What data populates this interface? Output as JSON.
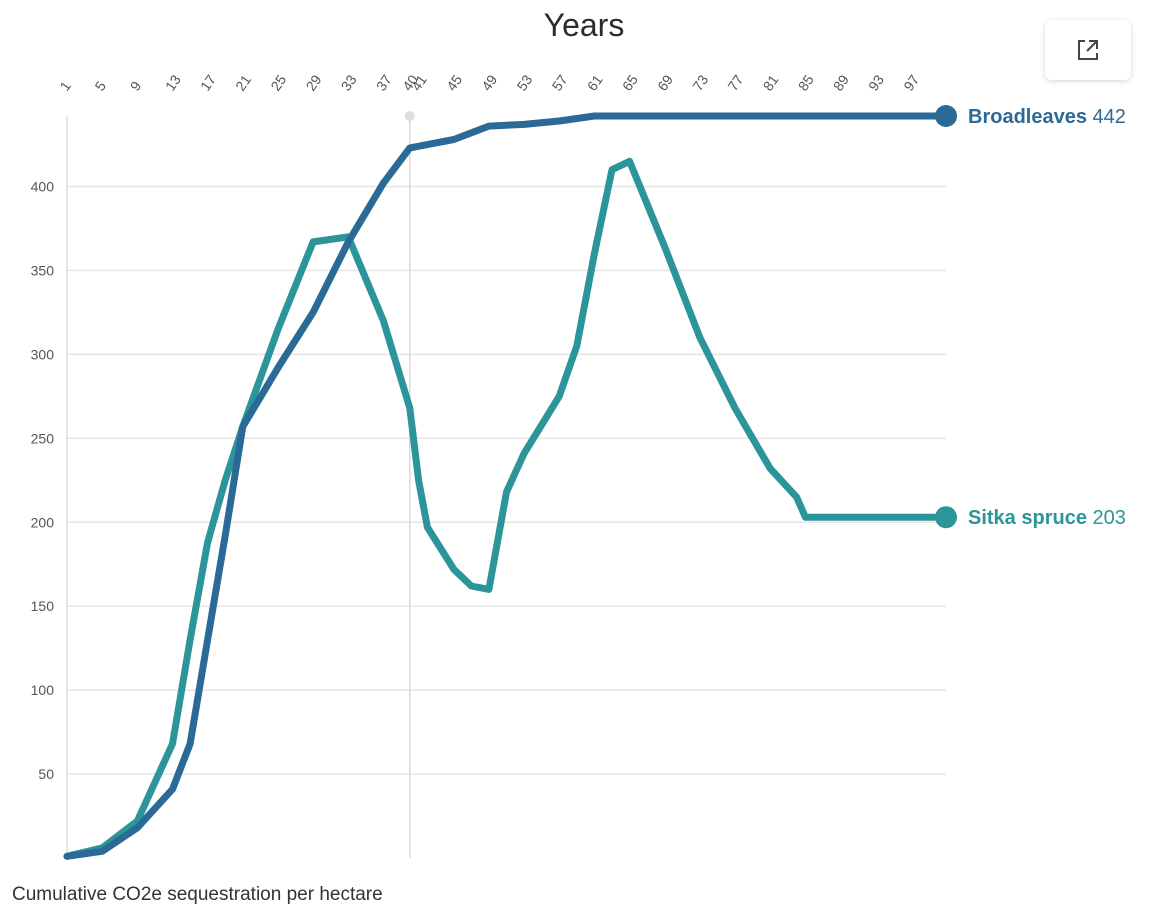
{
  "chart_data": {
    "type": "line",
    "title": "Years",
    "caption": "Cumulative CO2e sequestration per hectare",
    "x_ticks": [
      1,
      5,
      9,
      13,
      17,
      21,
      25,
      29,
      33,
      37,
      40,
      41,
      45,
      49,
      53,
      57,
      61,
      65,
      69,
      73,
      77,
      81,
      85,
      89,
      93,
      97
    ],
    "y_ticks": [
      50,
      100,
      150,
      200,
      250,
      300,
      350,
      400
    ],
    "xlim": [
      1,
      101
    ],
    "ylim": [
      0,
      442
    ],
    "grid": true,
    "hover_marker_x": 40,
    "series": [
      {
        "name": "Broadleaves",
        "end_value": "442",
        "color": "#2b6a96",
        "x": [
          1,
          5,
          9,
          13,
          15,
          17,
          19,
          21,
          25,
          29,
          33,
          37,
          40,
          45,
          49,
          53,
          57,
          61,
          65,
          69,
          73,
          77,
          81,
          85,
          89,
          93,
          97,
          101
        ],
        "y": [
          1,
          4,
          18,
          41,
          68,
          130,
          192,
          257,
          292,
          325,
          367,
          402,
          423,
          428,
          436,
          437,
          439,
          442,
          442,
          442,
          442,
          442,
          442,
          442,
          442,
          442,
          442,
          442
        ]
      },
      {
        "name": "Sitka spruce",
        "end_value": "203",
        "color": "#2b9599",
        "x": [
          1,
          5,
          9,
          13,
          15,
          17,
          19,
          21,
          25,
          29,
          33,
          37,
          40,
          41,
          42,
          45,
          47,
          49,
          51,
          53,
          55,
          57,
          59,
          61,
          63,
          65,
          69,
          73,
          77,
          81,
          84,
          85,
          86,
          89,
          93,
          97,
          101
        ],
        "y": [
          1,
          6,
          22,
          68,
          130,
          188,
          225,
          257,
          315,
          367,
          370,
          320,
          268,
          225,
          197,
          172,
          162,
          160,
          218,
          241,
          258,
          275,
          305,
          360,
          410,
          415,
          364,
          310,
          268,
          232,
          215,
          203,
          203,
          203,
          203,
          203,
          203
        ]
      }
    ]
  },
  "toolbar": {
    "expand_icon": "external-link-icon"
  }
}
